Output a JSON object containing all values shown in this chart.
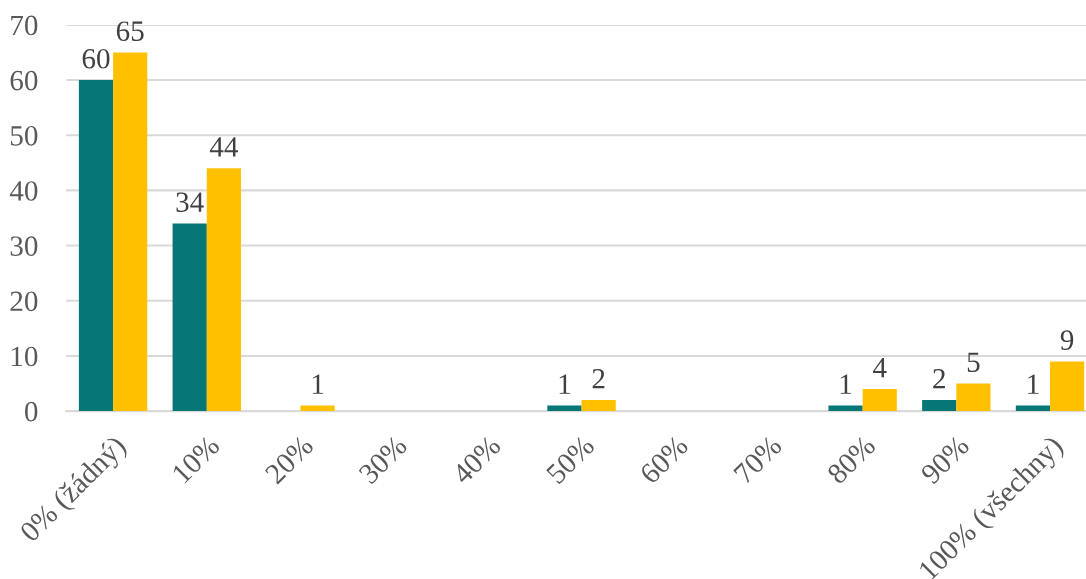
{
  "chart_data": {
    "type": "bar",
    "categories": [
      "0% (žádný)",
      "10%",
      "20%",
      "30%",
      "40%",
      "50%",
      "60%",
      "70%",
      "80%",
      "90%",
      "100% (všechny)"
    ],
    "series": [
      {
        "color": "#077676",
        "values": [
          60,
          34,
          null,
          null,
          null,
          1,
          null,
          null,
          1,
          2,
          1
        ],
        "value_labels": [
          "60",
          "34",
          null,
          null,
          null,
          "1",
          null,
          null,
          "1",
          "2",
          "1"
        ]
      },
      {
        "color": "#ffc000",
        "values": [
          65,
          44,
          1,
          null,
          null,
          2,
          null,
          null,
          4,
          5,
          9
        ],
        "value_labels": [
          "65",
          "44",
          "1",
          null,
          null,
          "2",
          null,
          null,
          "4",
          "5",
          "9"
        ]
      }
    ],
    "ylim": [
      0,
      70
    ],
    "yticks": [
      0,
      10,
      20,
      30,
      40,
      50,
      60,
      70
    ],
    "grid": "y"
  }
}
